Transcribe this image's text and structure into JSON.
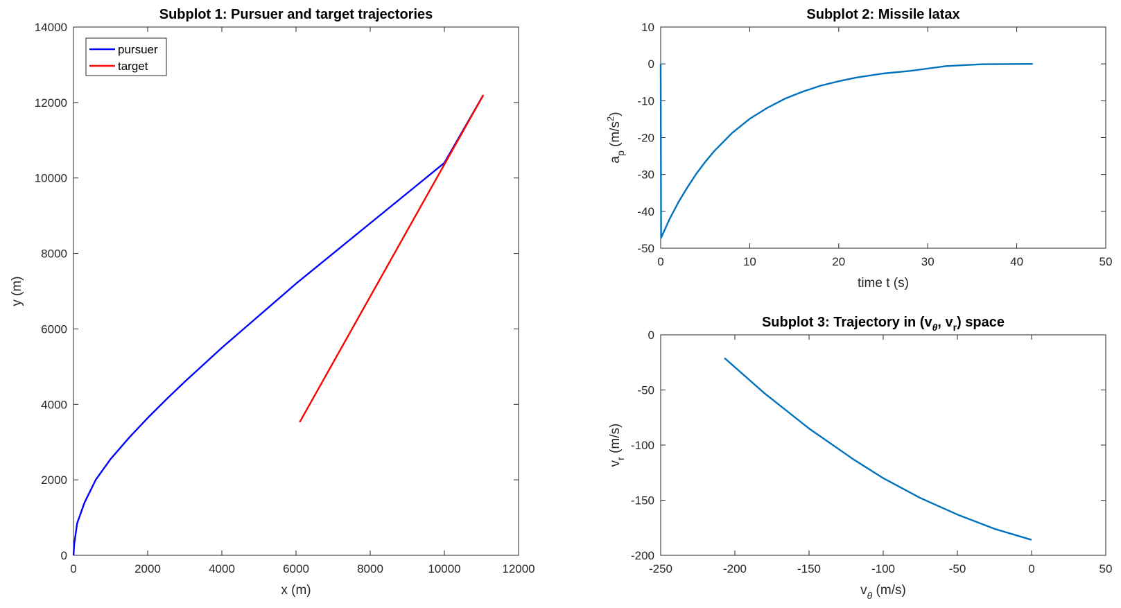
{
  "chart_data": [
    {
      "type": "line",
      "title": "Subplot 1: Pursuer and target trajectories",
      "xlabel": "x (m)",
      "ylabel": "y (m)",
      "xlim": [
        0,
        12000
      ],
      "ylim": [
        0,
        14000
      ],
      "xticks": [
        0,
        2000,
        4000,
        6000,
        8000,
        10000,
        12000
      ],
      "yticks": [
        0,
        2000,
        4000,
        6000,
        8000,
        10000,
        12000,
        14000
      ],
      "xtick_labels": [
        "0",
        "2000",
        "4000",
        "6000",
        "8000",
        "10000",
        "12000"
      ],
      "ytick_labels": [
        "0",
        "2000",
        "4000",
        "6000",
        "8000",
        "10000",
        "12000",
        "14000"
      ],
      "grid": false,
      "legend": "top-left",
      "series": [
        {
          "name": "pursuer",
          "color": "#0000ff",
          "x": [
            0,
            20,
            100,
            300,
            600,
            1000,
            1500,
            2000,
            2500,
            3000,
            3500,
            4000,
            5000,
            6000,
            7000,
            8000,
            9000,
            10000,
            11050
          ],
          "y": [
            0,
            300,
            850,
            1400,
            2000,
            2550,
            3120,
            3640,
            4130,
            4600,
            5050,
            5500,
            6350,
            7200,
            8000,
            8800,
            9600,
            10400,
            12200
          ]
        },
        {
          "name": "target",
          "color": "#ff0000",
          "x": [
            6100,
            11050
          ],
          "y": [
            3530,
            12200
          ]
        }
      ]
    },
    {
      "type": "line",
      "title": "Subplot 2: Missile latax",
      "xlabel": "time t (s)",
      "ylabel": "a_p (m/s^2)",
      "xlim": [
        0,
        50
      ],
      "ylim": [
        -50,
        10
      ],
      "xticks": [
        0,
        10,
        20,
        30,
        40,
        50
      ],
      "yticks": [
        -50,
        -40,
        -30,
        -20,
        -10,
        0,
        10
      ],
      "xtick_labels": [
        "0",
        "10",
        "20",
        "30",
        "40",
        "50"
      ],
      "ytick_labels": [
        "-50",
        "-40",
        "-30",
        "-20",
        "-10",
        "0",
        "10"
      ],
      "grid": false,
      "series": [
        {
          "color": "#0072bd",
          "x": [
            0,
            0.05,
            1,
            2,
            3,
            4,
            5,
            6,
            8,
            10,
            12,
            14,
            16,
            18,
            20,
            22,
            25,
            28,
            32,
            36,
            41.8
          ],
          "y": [
            0,
            -47.2,
            -42.1,
            -37.5,
            -33.5,
            -29.8,
            -26.6,
            -23.7,
            -18.8,
            -14.9,
            -11.9,
            -9.4,
            -7.5,
            -5.9,
            -4.7,
            -3.7,
            -2.6,
            -1.9,
            -0.6,
            -0.1,
            0
          ]
        }
      ]
    },
    {
      "type": "line",
      "title": "Subplot 3: Trajectory in (vθ, vr) space",
      "xlabel": "vθ (m/s)",
      "ylabel": "vr (m/s)",
      "xlim": [
        -250,
        50
      ],
      "ylim": [
        -200,
        0
      ],
      "xticks": [
        -250,
        -200,
        -150,
        -100,
        -50,
        0,
        50
      ],
      "yticks": [
        -200,
        -150,
        -100,
        -50,
        0
      ],
      "xtick_labels": [
        "-250",
        "-200",
        "-150",
        "-100",
        "-50",
        "0",
        "50"
      ],
      "ytick_labels": [
        "-200",
        "-150",
        "-100",
        "-50",
        "0"
      ],
      "grid": false,
      "series": [
        {
          "color": "#0072bd",
          "x": [
            -207,
            -180,
            -150,
            -120,
            -100,
            -75,
            -50,
            -25,
            0
          ],
          "y": [
            -21,
            -53,
            -85,
            -113,
            -130,
            -148,
            -163,
            -176,
            -186
          ]
        }
      ]
    }
  ]
}
